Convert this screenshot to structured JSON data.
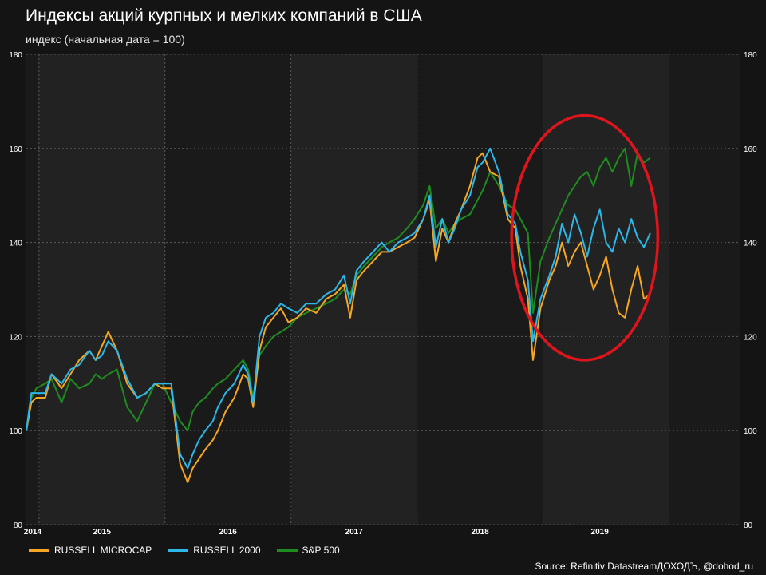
{
  "title": "Индексы акций курпных и мелких компаний в США",
  "subtitle": "индекс (начальная дата = 100)",
  "source": "Source: Refinitiv DatastreamДОХОДЪ, @dohod_ru",
  "colors": {
    "background": "#141414",
    "band_light": "#222222",
    "band_dark": "#1a1a1a",
    "grid": "#5a5a5a",
    "annotation": "#e0141c"
  },
  "chart_data": {
    "type": "line",
    "x_range": [
      2013.9,
      2019.56
    ],
    "ylim": [
      80,
      180
    ],
    "yticks": [
      80,
      100,
      120,
      140,
      160,
      180
    ],
    "ytick_labels": [
      "80",
      "100",
      "120",
      "140",
      "160",
      "180"
    ],
    "year_labels": [
      {
        "label": "2014",
        "x": 2013.95
      },
      {
        "label": "2015",
        "x": 2014.5
      },
      {
        "label": "2016",
        "x": 2015.5
      },
      {
        "label": "2017",
        "x": 2016.5
      },
      {
        "label": "2018",
        "x": 2017.5
      },
      {
        "label": "2019",
        "x": 2018.45
      }
    ],
    "year_boundaries": [
      2014.0,
      2015.0,
      2016.0,
      2017.0,
      2018.0,
      2019.0
    ],
    "grid": true,
    "legend_position": "bottom-left",
    "series": [
      {
        "name": "RUSSELL MICROCAP",
        "color": "#f5a623",
        "points": [
          [
            2013.9,
            100
          ],
          [
            2013.94,
            106
          ],
          [
            2013.98,
            107
          ],
          [
            2014.05,
            107
          ],
          [
            2014.1,
            112
          ],
          [
            2014.18,
            109
          ],
          [
            2014.25,
            112
          ],
          [
            2014.32,
            115
          ],
          [
            2014.4,
            117
          ],
          [
            2014.45,
            115
          ],
          [
            2014.5,
            118
          ],
          [
            2014.55,
            121
          ],
          [
            2014.62,
            117
          ],
          [
            2014.7,
            110
          ],
          [
            2014.78,
            107
          ],
          [
            2014.85,
            108
          ],
          [
            2014.92,
            110
          ],
          [
            2014.98,
            109
          ],
          [
            2015.05,
            109
          ],
          [
            2015.12,
            93
          ],
          [
            2015.18,
            89
          ],
          [
            2015.22,
            92
          ],
          [
            2015.27,
            94
          ],
          [
            2015.32,
            96
          ],
          [
            2015.38,
            98
          ],
          [
            2015.42,
            100
          ],
          [
            2015.48,
            104
          ],
          [
            2015.55,
            107
          ],
          [
            2015.62,
            112
          ],
          [
            2015.66,
            111
          ],
          [
            2015.7,
            105
          ],
          [
            2015.75,
            117
          ],
          [
            2015.8,
            122
          ],
          [
            2015.86,
            124
          ],
          [
            2015.92,
            126
          ],
          [
            2015.98,
            123
          ],
          [
            2016.05,
            124
          ],
          [
            2016.12,
            126
          ],
          [
            2016.2,
            125
          ],
          [
            2016.28,
            128
          ],
          [
            2016.35,
            129
          ],
          [
            2016.42,
            131
          ],
          [
            2016.47,
            124
          ],
          [
            2016.52,
            132
          ],
          [
            2016.58,
            134
          ],
          [
            2016.65,
            136
          ],
          [
            2016.72,
            138
          ],
          [
            2016.78,
            138
          ],
          [
            2016.85,
            139
          ],
          [
            2016.92,
            140
          ],
          [
            2016.98,
            141
          ],
          [
            2017.05,
            145
          ],
          [
            2017.1,
            149
          ],
          [
            2017.15,
            136
          ],
          [
            2017.2,
            143
          ],
          [
            2017.25,
            140
          ],
          [
            2017.3,
            144
          ],
          [
            2017.35,
            147
          ],
          [
            2017.42,
            152
          ],
          [
            2017.48,
            158
          ],
          [
            2017.52,
            159
          ],
          [
            2017.58,
            155
          ],
          [
            2017.65,
            154
          ],
          [
            2017.72,
            145
          ],
          [
            2017.78,
            143
          ],
          [
            2017.82,
            135
          ],
          [
            2017.88,
            128
          ],
          [
            2017.92,
            115
          ],
          [
            2017.98,
            126
          ],
          [
            2018.05,
            132
          ],
          [
            2018.1,
            135
          ],
          [
            2018.15,
            140
          ],
          [
            2018.2,
            135
          ],
          [
            2018.25,
            138
          ],
          [
            2018.3,
            140
          ],
          [
            2018.35,
            135
          ],
          [
            2018.4,
            130
          ],
          [
            2018.45,
            133
          ],
          [
            2018.5,
            137
          ],
          [
            2018.55,
            130
          ],
          [
            2018.6,
            125
          ],
          [
            2018.65,
            124
          ],
          [
            2018.7,
            130
          ],
          [
            2018.75,
            135
          ],
          [
            2018.8,
            128
          ],
          [
            2018.85,
            129
          ]
        ]
      },
      {
        "name": "RUSSELL 2000",
        "color": "#2bb7e8",
        "points": [
          [
            2013.9,
            100
          ],
          [
            2013.94,
            108
          ],
          [
            2013.98,
            108
          ],
          [
            2014.05,
            108
          ],
          [
            2014.1,
            112
          ],
          [
            2014.18,
            110
          ],
          [
            2014.25,
            113
          ],
          [
            2014.32,
            114
          ],
          [
            2014.4,
            117
          ],
          [
            2014.45,
            115
          ],
          [
            2014.5,
            116
          ],
          [
            2014.55,
            119
          ],
          [
            2014.62,
            117
          ],
          [
            2014.7,
            111
          ],
          [
            2014.78,
            107
          ],
          [
            2014.85,
            108
          ],
          [
            2014.92,
            110
          ],
          [
            2014.98,
            110
          ],
          [
            2015.05,
            110
          ],
          [
            2015.12,
            95
          ],
          [
            2015.18,
            92
          ],
          [
            2015.22,
            95
          ],
          [
            2015.27,
            98
          ],
          [
            2015.32,
            100
          ],
          [
            2015.38,
            102
          ],
          [
            2015.42,
            105
          ],
          [
            2015.48,
            108
          ],
          [
            2015.55,
            110
          ],
          [
            2015.62,
            114
          ],
          [
            2015.66,
            112
          ],
          [
            2015.7,
            106
          ],
          [
            2015.75,
            120
          ],
          [
            2015.8,
            124
          ],
          [
            2015.86,
            125
          ],
          [
            2015.92,
            127
          ],
          [
            2015.98,
            126
          ],
          [
            2016.05,
            125
          ],
          [
            2016.12,
            127
          ],
          [
            2016.2,
            127
          ],
          [
            2016.28,
            129
          ],
          [
            2016.35,
            130
          ],
          [
            2016.42,
            133
          ],
          [
            2016.47,
            127
          ],
          [
            2016.52,
            134
          ],
          [
            2016.58,
            136
          ],
          [
            2016.65,
            138
          ],
          [
            2016.72,
            140
          ],
          [
            2016.78,
            138
          ],
          [
            2016.85,
            140
          ],
          [
            2016.92,
            141
          ],
          [
            2016.98,
            142
          ],
          [
            2017.05,
            145
          ],
          [
            2017.1,
            150
          ],
          [
            2017.15,
            139
          ],
          [
            2017.2,
            145
          ],
          [
            2017.25,
            140
          ],
          [
            2017.3,
            143
          ],
          [
            2017.35,
            147
          ],
          [
            2017.42,
            150
          ],
          [
            2017.48,
            156
          ],
          [
            2017.52,
            157
          ],
          [
            2017.58,
            160
          ],
          [
            2017.65,
            155
          ],
          [
            2017.72,
            146
          ],
          [
            2017.78,
            144
          ],
          [
            2017.82,
            138
          ],
          [
            2017.88,
            132
          ],
          [
            2017.92,
            119
          ],
          [
            2017.98,
            128
          ],
          [
            2018.05,
            133
          ],
          [
            2018.1,
            137
          ],
          [
            2018.15,
            144
          ],
          [
            2018.2,
            140
          ],
          [
            2018.25,
            146
          ],
          [
            2018.3,
            142
          ],
          [
            2018.35,
            137
          ],
          [
            2018.4,
            143
          ],
          [
            2018.45,
            147
          ],
          [
            2018.5,
            140
          ],
          [
            2018.55,
            138
          ],
          [
            2018.6,
            143
          ],
          [
            2018.65,
            140
          ],
          [
            2018.7,
            145
          ],
          [
            2018.75,
            141
          ],
          [
            2018.8,
            139
          ],
          [
            2018.85,
            142
          ]
        ]
      },
      {
        "name": "S&P 500",
        "color": "#1e8c1e",
        "points": [
          [
            2013.9,
            100
          ],
          [
            2013.94,
            107
          ],
          [
            2013.98,
            109
          ],
          [
            2014.05,
            110
          ],
          [
            2014.1,
            111
          ],
          [
            2014.18,
            106
          ],
          [
            2014.25,
            111
          ],
          [
            2014.32,
            109
          ],
          [
            2014.4,
            110
          ],
          [
            2014.45,
            112
          ],
          [
            2014.5,
            111
          ],
          [
            2014.55,
            112
          ],
          [
            2014.62,
            113
          ],
          [
            2014.7,
            105
          ],
          [
            2014.78,
            102
          ],
          [
            2014.85,
            106
          ],
          [
            2014.92,
            110
          ],
          [
            2014.98,
            110
          ],
          [
            2015.05,
            106
          ],
          [
            2015.12,
            102
          ],
          [
            2015.18,
            100
          ],
          [
            2015.22,
            104
          ],
          [
            2015.27,
            106
          ],
          [
            2015.32,
            107
          ],
          [
            2015.38,
            109
          ],
          [
            2015.42,
            110
          ],
          [
            2015.48,
            111
          ],
          [
            2015.55,
            113
          ],
          [
            2015.62,
            115
          ],
          [
            2015.66,
            113
          ],
          [
            2015.7,
            107
          ],
          [
            2015.75,
            116
          ],
          [
            2015.8,
            118
          ],
          [
            2015.86,
            120
          ],
          [
            2015.92,
            121
          ],
          [
            2015.98,
            122
          ],
          [
            2016.05,
            124
          ],
          [
            2016.12,
            125
          ],
          [
            2016.2,
            126
          ],
          [
            2016.28,
            127
          ],
          [
            2016.35,
            128
          ],
          [
            2016.42,
            130
          ],
          [
            2016.47,
            129
          ],
          [
            2016.52,
            133
          ],
          [
            2016.58,
            135
          ],
          [
            2016.65,
            137
          ],
          [
            2016.72,
            139
          ],
          [
            2016.78,
            140
          ],
          [
            2016.85,
            141
          ],
          [
            2016.92,
            143
          ],
          [
            2016.98,
            145
          ],
          [
            2017.05,
            148
          ],
          [
            2017.1,
            152
          ],
          [
            2017.15,
            143
          ],
          [
            2017.2,
            145
          ],
          [
            2017.25,
            142
          ],
          [
            2017.3,
            144
          ],
          [
            2017.35,
            145
          ],
          [
            2017.42,
            146
          ],
          [
            2017.48,
            149
          ],
          [
            2017.52,
            151
          ],
          [
            2017.58,
            155
          ],
          [
            2017.65,
            152
          ],
          [
            2017.72,
            148
          ],
          [
            2017.78,
            147
          ],
          [
            2017.82,
            145
          ],
          [
            2017.88,
            142
          ],
          [
            2017.92,
            125
          ],
          [
            2017.98,
            136
          ],
          [
            2018.05,
            141
          ],
          [
            2018.1,
            144
          ],
          [
            2018.15,
            147
          ],
          [
            2018.2,
            150
          ],
          [
            2018.25,
            152
          ],
          [
            2018.3,
            154
          ],
          [
            2018.35,
            155
          ],
          [
            2018.4,
            152
          ],
          [
            2018.45,
            156
          ],
          [
            2018.5,
            158
          ],
          [
            2018.55,
            155
          ],
          [
            2018.6,
            158
          ],
          [
            2018.65,
            160
          ],
          [
            2018.7,
            152
          ],
          [
            2018.75,
            159
          ],
          [
            2018.8,
            157
          ],
          [
            2018.85,
            158
          ]
        ]
      }
    ],
    "annotation": {
      "shape": "ellipse",
      "color": "#e0141c",
      "center": [
        2018.33,
        141
      ],
      "radius_x": 0.58,
      "radius_y": 26
    }
  }
}
